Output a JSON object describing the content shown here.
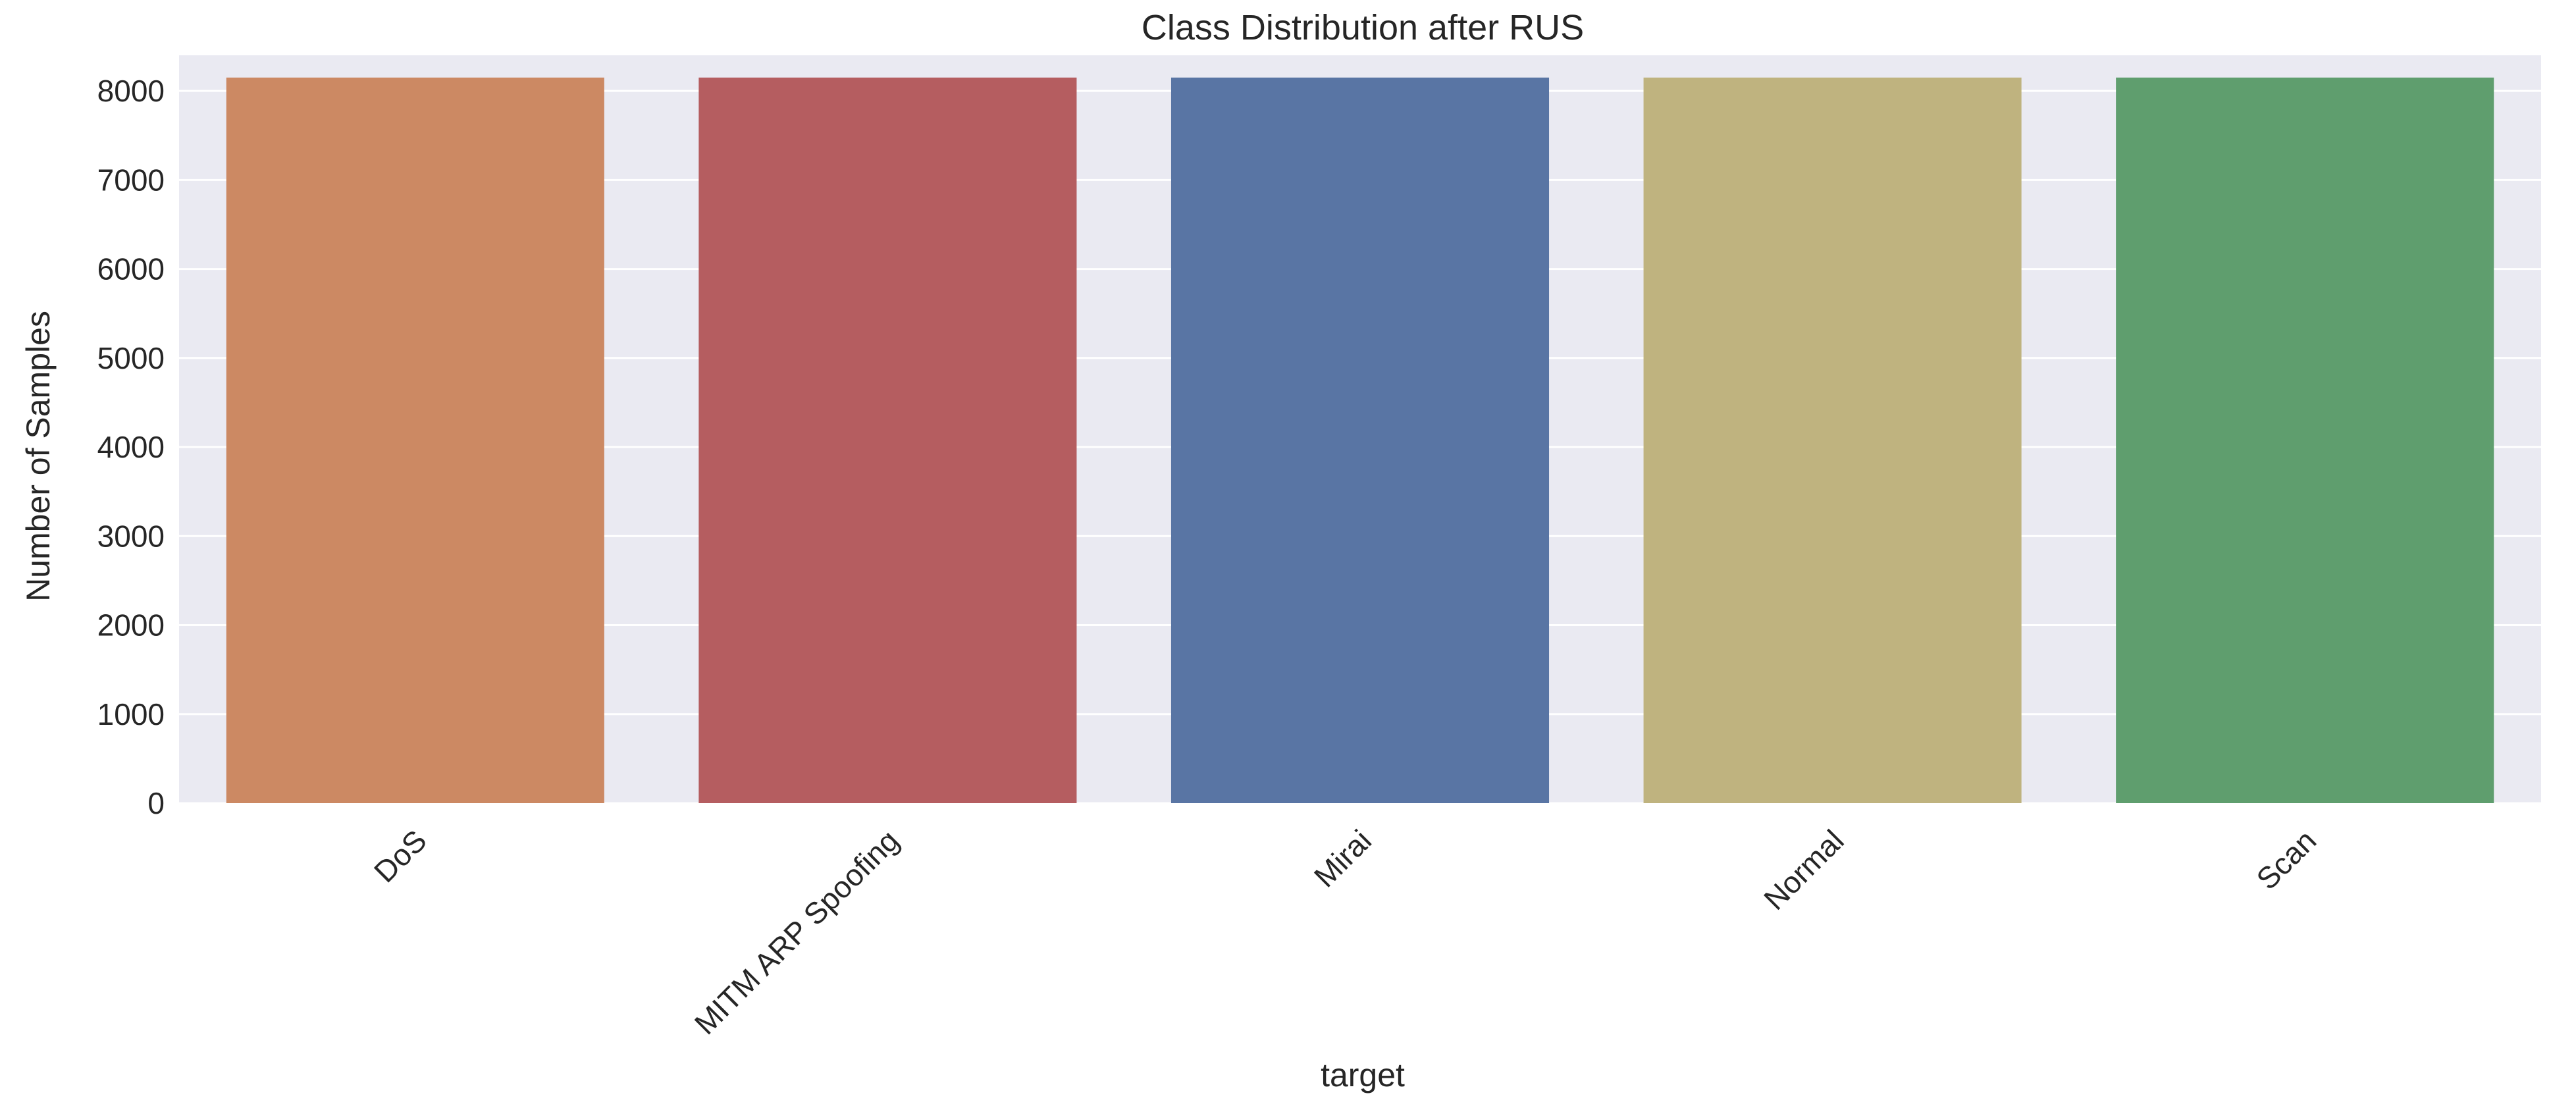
{
  "chart_data": {
    "type": "bar",
    "title": "Class Distribution after RUS",
    "xlabel": "target",
    "ylabel": "Number of Samples",
    "categories": [
      "DoS",
      "MITM ARP Spoofing",
      "Mirai",
      "Normal",
      "Scan"
    ],
    "values": [
      8150,
      8150,
      8150,
      8150,
      8150
    ],
    "bar_colors": [
      "#cc8963",
      "#b55d60",
      "#5975a4",
      "#bfb37f",
      "#5f9e6e"
    ],
    "ylim": [
      0,
      8400
    ],
    "yticks": [
      0,
      1000,
      2000,
      3000,
      4000,
      5000,
      6000,
      7000,
      8000
    ],
    "grid": true,
    "background": "#eaeaf2",
    "gridline_color": "#ffffff",
    "xtick_rotation_deg": 45
  }
}
